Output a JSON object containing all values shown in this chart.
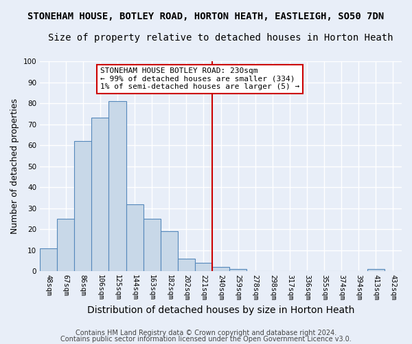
{
  "title_line1": "STONEHAM HOUSE, BOTLEY ROAD, HORTON HEATH, EASTLEIGH, SO50 7DN",
  "title_line2": "Size of property relative to detached houses in Horton Heath",
  "xlabel": "Distribution of detached houses by size in Horton Heath",
  "ylabel": "Number of detached properties",
  "footer_line1": "Contains HM Land Registry data © Crown copyright and database right 2024.",
  "footer_line2": "Contains public sector information licensed under the Open Government Licence v3.0.",
  "bar_labels": [
    "48sqm",
    "67sqm",
    "86sqm",
    "106sqm",
    "125sqm",
    "144sqm",
    "163sqm",
    "182sqm",
    "202sqm",
    "221sqm",
    "240sqm",
    "259sqm",
    "278sqm",
    "298sqm",
    "317sqm",
    "336sqm",
    "355sqm",
    "374sqm",
    "394sqm",
    "413sqm",
    "432sqm"
  ],
  "bar_values": [
    11,
    25,
    62,
    73,
    81,
    32,
    25,
    19,
    6,
    4,
    2,
    1,
    0,
    0,
    0,
    0,
    0,
    0,
    0,
    1,
    0
  ],
  "bar_color": "#c8d8e8",
  "bar_edge_color": "#5588bb",
  "vline_x": 9.5,
  "vline_color": "#cc0000",
  "ylim": [
    0,
    100
  ],
  "yticks": [
    0,
    10,
    20,
    30,
    40,
    50,
    60,
    70,
    80,
    90,
    100
  ],
  "annotation_text": "STONEHAM HOUSE BOTLEY ROAD: 230sqm\n← 99% of detached houses are smaller (334)\n1% of semi-detached houses are larger (5) →",
  "annotation_box_facecolor": "#ffffff",
  "annotation_box_edgecolor": "#cc0000",
  "background_color": "#e8eef8",
  "plot_background_color": "#e8eef8",
  "grid_color": "#ffffff",
  "title1_fontsize": 10,
  "title2_fontsize": 10,
  "xlabel_fontsize": 10,
  "ylabel_fontsize": 9,
  "tick_fontsize": 7.5,
  "annotation_fontsize": 8,
  "footer_fontsize": 7
}
